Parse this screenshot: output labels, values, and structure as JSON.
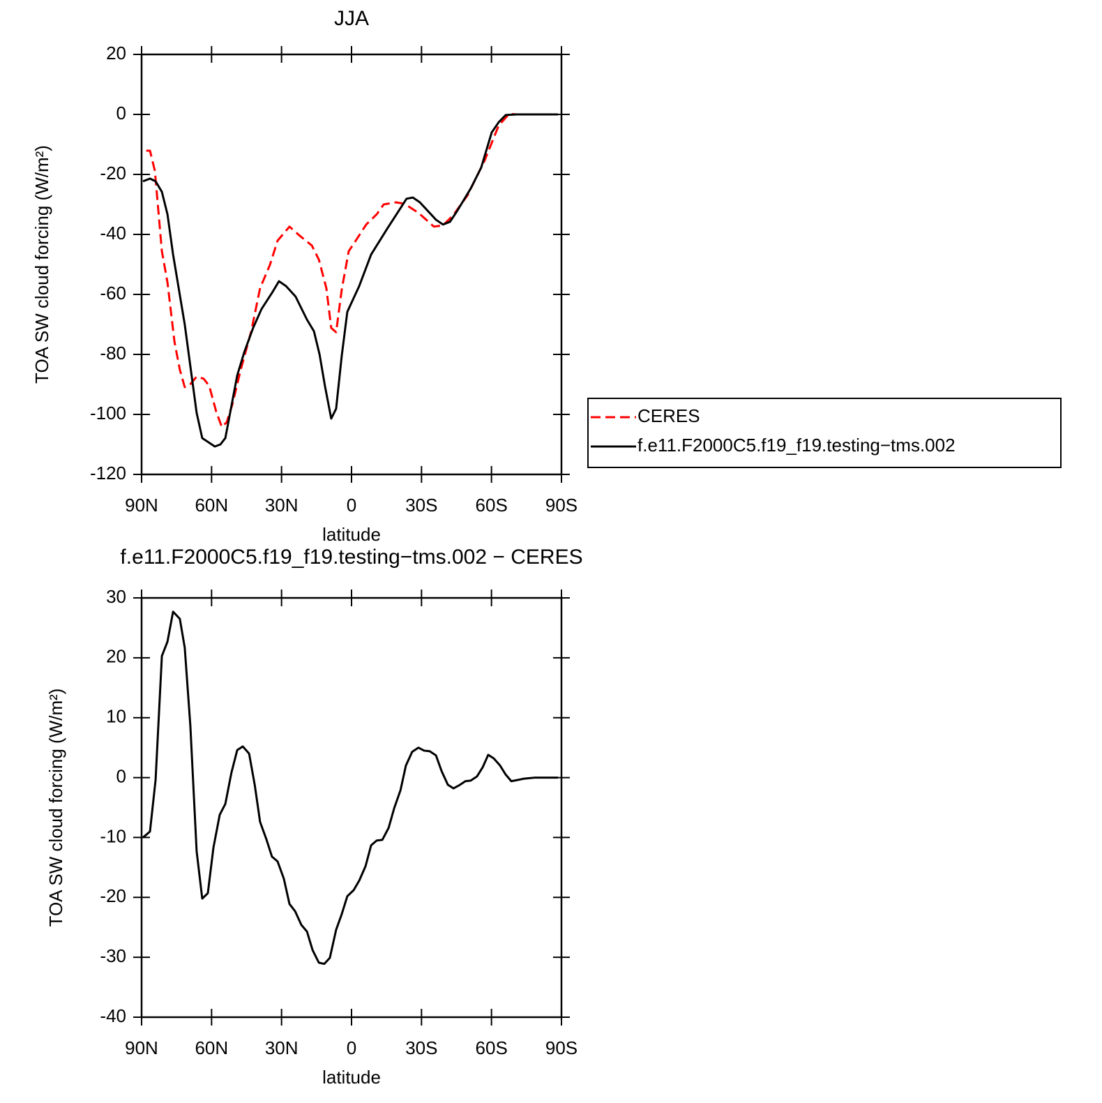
{
  "chart_data": [
    {
      "type": "line",
      "title": "JJA",
      "x_label": "latitude",
      "y_label": "TOA SW cloud forcing (W/m²)",
      "xlim": [
        90,
        -90
      ],
      "xticks": [
        {
          "value": 90,
          "label": "90N"
        },
        {
          "value": 60,
          "label": "60N"
        },
        {
          "value": 30,
          "label": "30N"
        },
        0,
        {
          "value": -30,
          "label": "30S"
        },
        {
          "value": -60,
          "label": "60S"
        },
        {
          "value": -90,
          "label": "90S"
        }
      ],
      "ylim": [
        -120,
        20
      ],
      "yticks": [
        -120,
        -100,
        -80,
        -60,
        -40,
        -20,
        0,
        20
      ],
      "legend": "right",
      "series": [
        {
          "name": "CERES",
          "color": "#ff0000",
          "dash": "dashed",
          "x": [
            88,
            86.4,
            84.3,
            81.3,
            78.9,
            75.9,
            73.6,
            71.5,
            69.4,
            66.4,
            63.4,
            61,
            58,
            55.6,
            53.5,
            51.1,
            47.5,
            43,
            39.2,
            35,
            31.7,
            26.6,
            22.1,
            17,
            14,
            10.8,
            8.7,
            6.6,
            4.2,
            1.2,
            -1.8,
            -6.3,
            -10.8,
            -13.8,
            -19.1,
            -22.7,
            -28.7,
            -35.3,
            -39.2,
            -43.7,
            -49.7,
            -57.1,
            -63.1,
            -67.6,
            -70.6,
            -88.5
          ],
          "values": [
            -12.1,
            -12.1,
            -18.8,
            -45.6,
            -56,
            -75.8,
            -85.1,
            -90.9,
            -90.2,
            -87.4,
            -88.1,
            -90.5,
            -99.1,
            -104.2,
            -102.6,
            -96.7,
            -85.1,
            -72.3,
            -57.9,
            -50.2,
            -42.1,
            -37.4,
            -40.5,
            -43.7,
            -48.4,
            -57.9,
            -71.2,
            -72.6,
            -58.4,
            -45.6,
            -42.1,
            -36.7,
            -33.3,
            -30,
            -29.3,
            -29.8,
            -32.8,
            -37.4,
            -37,
            -33.5,
            -27,
            -15.3,
            -3.7,
            0.2,
            0,
            0
          ]
        },
        {
          "name": "f.e11.F2000C5.f19_f19.testing−tms.002",
          "color": "#000000",
          "dash": "solid",
          "x": [
            89.4,
            86.4,
            84,
            81.3,
            78.9,
            76.5,
            71.5,
            66.4,
            64,
            58.6,
            56.2,
            54.1,
            49,
            46,
            42.2,
            38.6,
            34.1,
            31.1,
            28.1,
            24,
            19.1,
            16.1,
            13.7,
            11.4,
            8.7,
            6.6,
            4.2,
            1.8,
            -3.3,
            -8.4,
            -15.3,
            -23.6,
            -26.3,
            -29.3,
            -36.2,
            -39.2,
            -42.2,
            -45.2,
            -51.1,
            -55.6,
            -60.1,
            -63.1,
            -66.1,
            -70.6,
            -88.5
          ],
          "values": [
            -22.3,
            -21.4,
            -22.3,
            -25.8,
            -33.3,
            -46.7,
            -70,
            -99.5,
            -107.9,
            -110.7,
            -110,
            -107.9,
            -87,
            -79.3,
            -71.2,
            -64.9,
            -59.5,
            -55.6,
            -57.2,
            -60.7,
            -68.4,
            -72.3,
            -80,
            -90.5,
            -101.4,
            -98.1,
            -80.5,
            -65.8,
            -57.2,
            -46.7,
            -38.1,
            -28.1,
            -27.7,
            -29.3,
            -35.1,
            -36.7,
            -35.8,
            -32.3,
            -24.7,
            -17.7,
            -6,
            -2.6,
            -0.2,
            0,
            0
          ]
        }
      ]
    },
    {
      "type": "line",
      "title": "f.e11.F2000C5.f19_f19.testing−tms.002 − CERES",
      "x_label": "latitude",
      "y_label": "TOA SW cloud forcing (W/m²)",
      "xlim": [
        90,
        -90
      ],
      "xticks": [
        {
          "value": 90,
          "label": "90N"
        },
        {
          "value": 60,
          "label": "60N"
        },
        {
          "value": 30,
          "label": "30N"
        },
        0,
        {
          "value": -30,
          "label": "30S"
        },
        {
          "value": -60,
          "label": "60S"
        },
        {
          "value": -90,
          "label": "90S"
        }
      ],
      "ylim": [
        -40,
        30
      ],
      "yticks": [
        -40,
        -30,
        -20,
        -10,
        0,
        10,
        20,
        30
      ],
      "series": [
        {
          "color": "#000000",
          "dash": "solid",
          "x": [
            89.4,
            86.4,
            84,
            81.3,
            78.9,
            76.5,
            73.6,
            71.5,
            69.1,
            66.4,
            64,
            61.6,
            59.2,
            56.5,
            54.1,
            51.5,
            49,
            46.6,
            43.9,
            41.5,
            39.2,
            36.5,
            34.1,
            31.7,
            29,
            26.6,
            24.2,
            21.5,
            19.1,
            16.7,
            14,
            11.7,
            9.3,
            6.6,
            4.2,
            1.8,
            -0.9,
            -3.3,
            -6,
            -8.4,
            -10.8,
            -13.2,
            -15.9,
            -18.3,
            -21,
            -23.3,
            -26,
            -28.7,
            -31.1,
            -33.5,
            -36.2,
            -38.6,
            -41.3,
            -43.7,
            -46.1,
            -48.8,
            -51.1,
            -53.8,
            -56.2,
            -58.6,
            -61,
            -63.7,
            -66.1,
            -68.5,
            -71.2,
            -73.6,
            -78.7,
            -88.5
          ],
          "values": [
            -10,
            -9,
            -0.4,
            20.3,
            22.7,
            27.7,
            26.5,
            21.7,
            8.7,
            -12.3,
            -20.2,
            -19.3,
            -11.7,
            -6.2,
            -4.4,
            0.8,
            4.6,
            5.2,
            4,
            -1.2,
            -7.4,
            -10.3,
            -13.2,
            -14,
            -16.9,
            -21.1,
            -22.3,
            -24.6,
            -25.7,
            -28.8,
            -30.9,
            -31.1,
            -30.1,
            -25.4,
            -22.8,
            -19.8,
            -18.8,
            -17.2,
            -14.8,
            -11.3,
            -10.5,
            -10.4,
            -8.4,
            -5.1,
            -2.1,
            2,
            4.3,
            5,
            4.5,
            4.4,
            3.7,
            1.1,
            -1.2,
            -1.8,
            -1.3,
            -0.6,
            -0.5,
            0.2,
            1.7,
            3.8,
            3.2,
            2,
            0.5,
            -0.6,
            -0.4,
            -0.2,
            0,
            0
          ]
        }
      ]
    }
  ]
}
